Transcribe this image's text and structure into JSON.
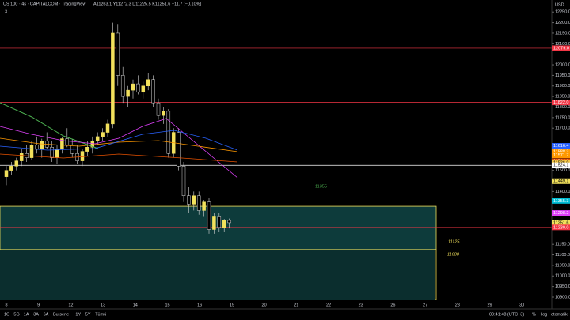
{
  "header": {
    "title": "US 100 · 4s · CAPITALCOM · TradingView",
    "readout": "A11263.1 Y11272.3 D11225.5 K11251.6 −11.7 (−0.10%)",
    "indicators": "3",
    "currency": "USD"
  },
  "chart_data": {
    "type": "candlestick",
    "up_color": "#f2e15c",
    "down_color": "#000000",
    "wick_color": "#d8d8d8",
    "ohlc": [
      [
        11470,
        11520,
        11430,
        11500
      ],
      [
        11500,
        11540,
        11480,
        11520
      ],
      [
        11520,
        11560,
        11500,
        11545
      ],
      [
        11545,
        11600,
        11520,
        11580
      ],
      [
        11580,
        11620,
        11540,
        11560
      ],
      [
        11560,
        11640,
        11550,
        11620
      ],
      [
        11620,
        11660,
        11580,
        11600
      ],
      [
        11600,
        11650,
        11560,
        11640
      ],
      [
        11640,
        11680,
        11600,
        11610
      ],
      [
        11610,
        11640,
        11540,
        11560
      ],
      [
        11560,
        11620,
        11530,
        11600
      ],
      [
        11600,
        11660,
        11580,
        11650
      ],
      [
        11650,
        11700,
        11610,
        11620
      ],
      [
        11620,
        11650,
        11560,
        11580
      ],
      [
        11580,
        11620,
        11530,
        11545
      ],
      [
        11545,
        11600,
        11520,
        11590
      ],
      [
        11590,
        11640,
        11570,
        11610
      ],
      [
        11610,
        11660,
        11580,
        11640
      ],
      [
        11640,
        11680,
        11620,
        11660
      ],
      [
        11660,
        11700,
        11640,
        11680
      ],
      [
        11680,
        11740,
        11660,
        11720
      ],
      [
        11720,
        12200,
        11700,
        12150
      ],
      [
        12150,
        12190,
        11900,
        11950
      ],
      [
        11950,
        11990,
        11820,
        11850
      ],
      [
        11850,
        11900,
        11800,
        11880
      ],
      [
        11880,
        11930,
        11840,
        11910
      ],
      [
        11910,
        11950,
        11860,
        11870
      ],
      [
        11870,
        11920,
        11840,
        11900
      ],
      [
        11900,
        11960,
        11880,
        11930
      ],
      [
        11930,
        11950,
        11800,
        11820
      ],
      [
        11820,
        11840,
        11740,
        11760
      ],
      [
        11760,
        11800,
        11720,
        11780
      ],
      [
        11780,
        11790,
        11560,
        11580
      ],
      [
        11580,
        11700,
        11560,
        11680
      ],
      [
        11680,
        11700,
        11500,
        11520
      ],
      [
        11520,
        11540,
        11350,
        11380
      ],
      [
        11380,
        11420,
        11300,
        11340
      ],
      [
        11340,
        11400,
        11310,
        11380
      ],
      [
        11380,
        11400,
        11290,
        11310
      ],
      [
        11310,
        11360,
        11280,
        11350
      ],
      [
        11350,
        11370,
        11200,
        11220
      ],
      [
        11220,
        11300,
        11200,
        11280
      ],
      [
        11280,
        11300,
        11210,
        11230
      ],
      [
        11230,
        11270,
        11210,
        11263
      ],
      [
        11263,
        11272,
        11225,
        11252
      ]
    ],
    "ylim": [
      10885,
      12307
    ],
    "yticks": [
      {
        "value": 12250,
        "label": "12250.0"
      },
      {
        "value": 12200,
        "label": "12200.0"
      },
      {
        "value": 12150,
        "label": "12150.0"
      },
      {
        "value": 12100,
        "label": "12100.0"
      },
      {
        "value": 12000,
        "label": "12000.0"
      },
      {
        "value": 11950,
        "label": "11950.0"
      },
      {
        "value": 11900,
        "label": "11900.0"
      },
      {
        "value": 11850,
        "label": "11850.0"
      },
      {
        "value": 11800,
        "label": "11800.0"
      },
      {
        "value": 11750,
        "label": "11750.0"
      },
      {
        "value": 11700,
        "label": "11700.0"
      },
      {
        "value": 11500,
        "label": "11500.0"
      },
      {
        "value": 11400,
        "label": "11400.0"
      },
      {
        "value": 11150,
        "label": "11150.0"
      },
      {
        "value": 11100,
        "label": "11100.0"
      },
      {
        "value": 11050,
        "label": "11050.0"
      },
      {
        "value": 11000,
        "label": "11000.0"
      },
      {
        "value": 10950,
        "label": "10950.0"
      },
      {
        "value": 10900,
        "label": "10900.0"
      }
    ],
    "levels": [
      {
        "value": 12079,
        "label": "12079.0",
        "color": "#f23645",
        "line": true
      },
      {
        "value": 11822,
        "label": "11822.0",
        "color": "#f23645",
        "line": true
      },
      {
        "value": 11616.4,
        "label": "11616.4",
        "color": "#2962ff",
        "line": false
      },
      {
        "value": 11588.3,
        "label": "11588.3",
        "color": "#ff9800",
        "line": false
      },
      {
        "value": 11571.7,
        "label": "11571.7",
        "color": "#ff9800",
        "line": false
      },
      {
        "value": 11544.1,
        "label": "11544.1",
        "color": "#e65100",
        "line": false
      },
      {
        "value": 11536,
        "label": "11536.0",
        "color": "#f7c948",
        "line": false
      },
      {
        "value": 11524.1,
        "label": "11524.1",
        "color": "#ffffff",
        "line": true
      },
      {
        "value": 11449.1,
        "label": "11449.1",
        "color": "#f2e15c",
        "line": false
      },
      {
        "value": 11355.3,
        "label": "11355.3",
        "color": "#00bcd4",
        "line": true
      },
      {
        "value": 11298.2,
        "label": "11298.2",
        "color": "#e040fb",
        "line": false
      },
      {
        "value": 11251.6,
        "label": "11251.6",
        "color": "#f2e15c",
        "line": false
      },
      {
        "value": 11230,
        "label": "11230.0",
        "color": "#f23645",
        "line": true
      }
    ],
    "box": {
      "top": 11330,
      "bottom": 11125,
      "lower": 11125
    },
    "annotations": [
      "11355",
      "11125",
      "11088"
    ],
    "dates": [
      "8",
      "9",
      "12",
      "13",
      "14",
      "15",
      "16",
      "19",
      "20",
      "21",
      "22",
      "23",
      "26",
      "27",
      "28",
      "29",
      "30"
    ]
  },
  "toolbar": {
    "ranges": [
      "1G",
      "5G",
      "1A",
      "3A",
      "6A",
      "Bu sene",
      "1Y",
      "5Y",
      "Tümü"
    ],
    "clock": "09:41:48 (UTC+3)",
    "percent": "%",
    "log": "log",
    "auto": "otomatik"
  }
}
